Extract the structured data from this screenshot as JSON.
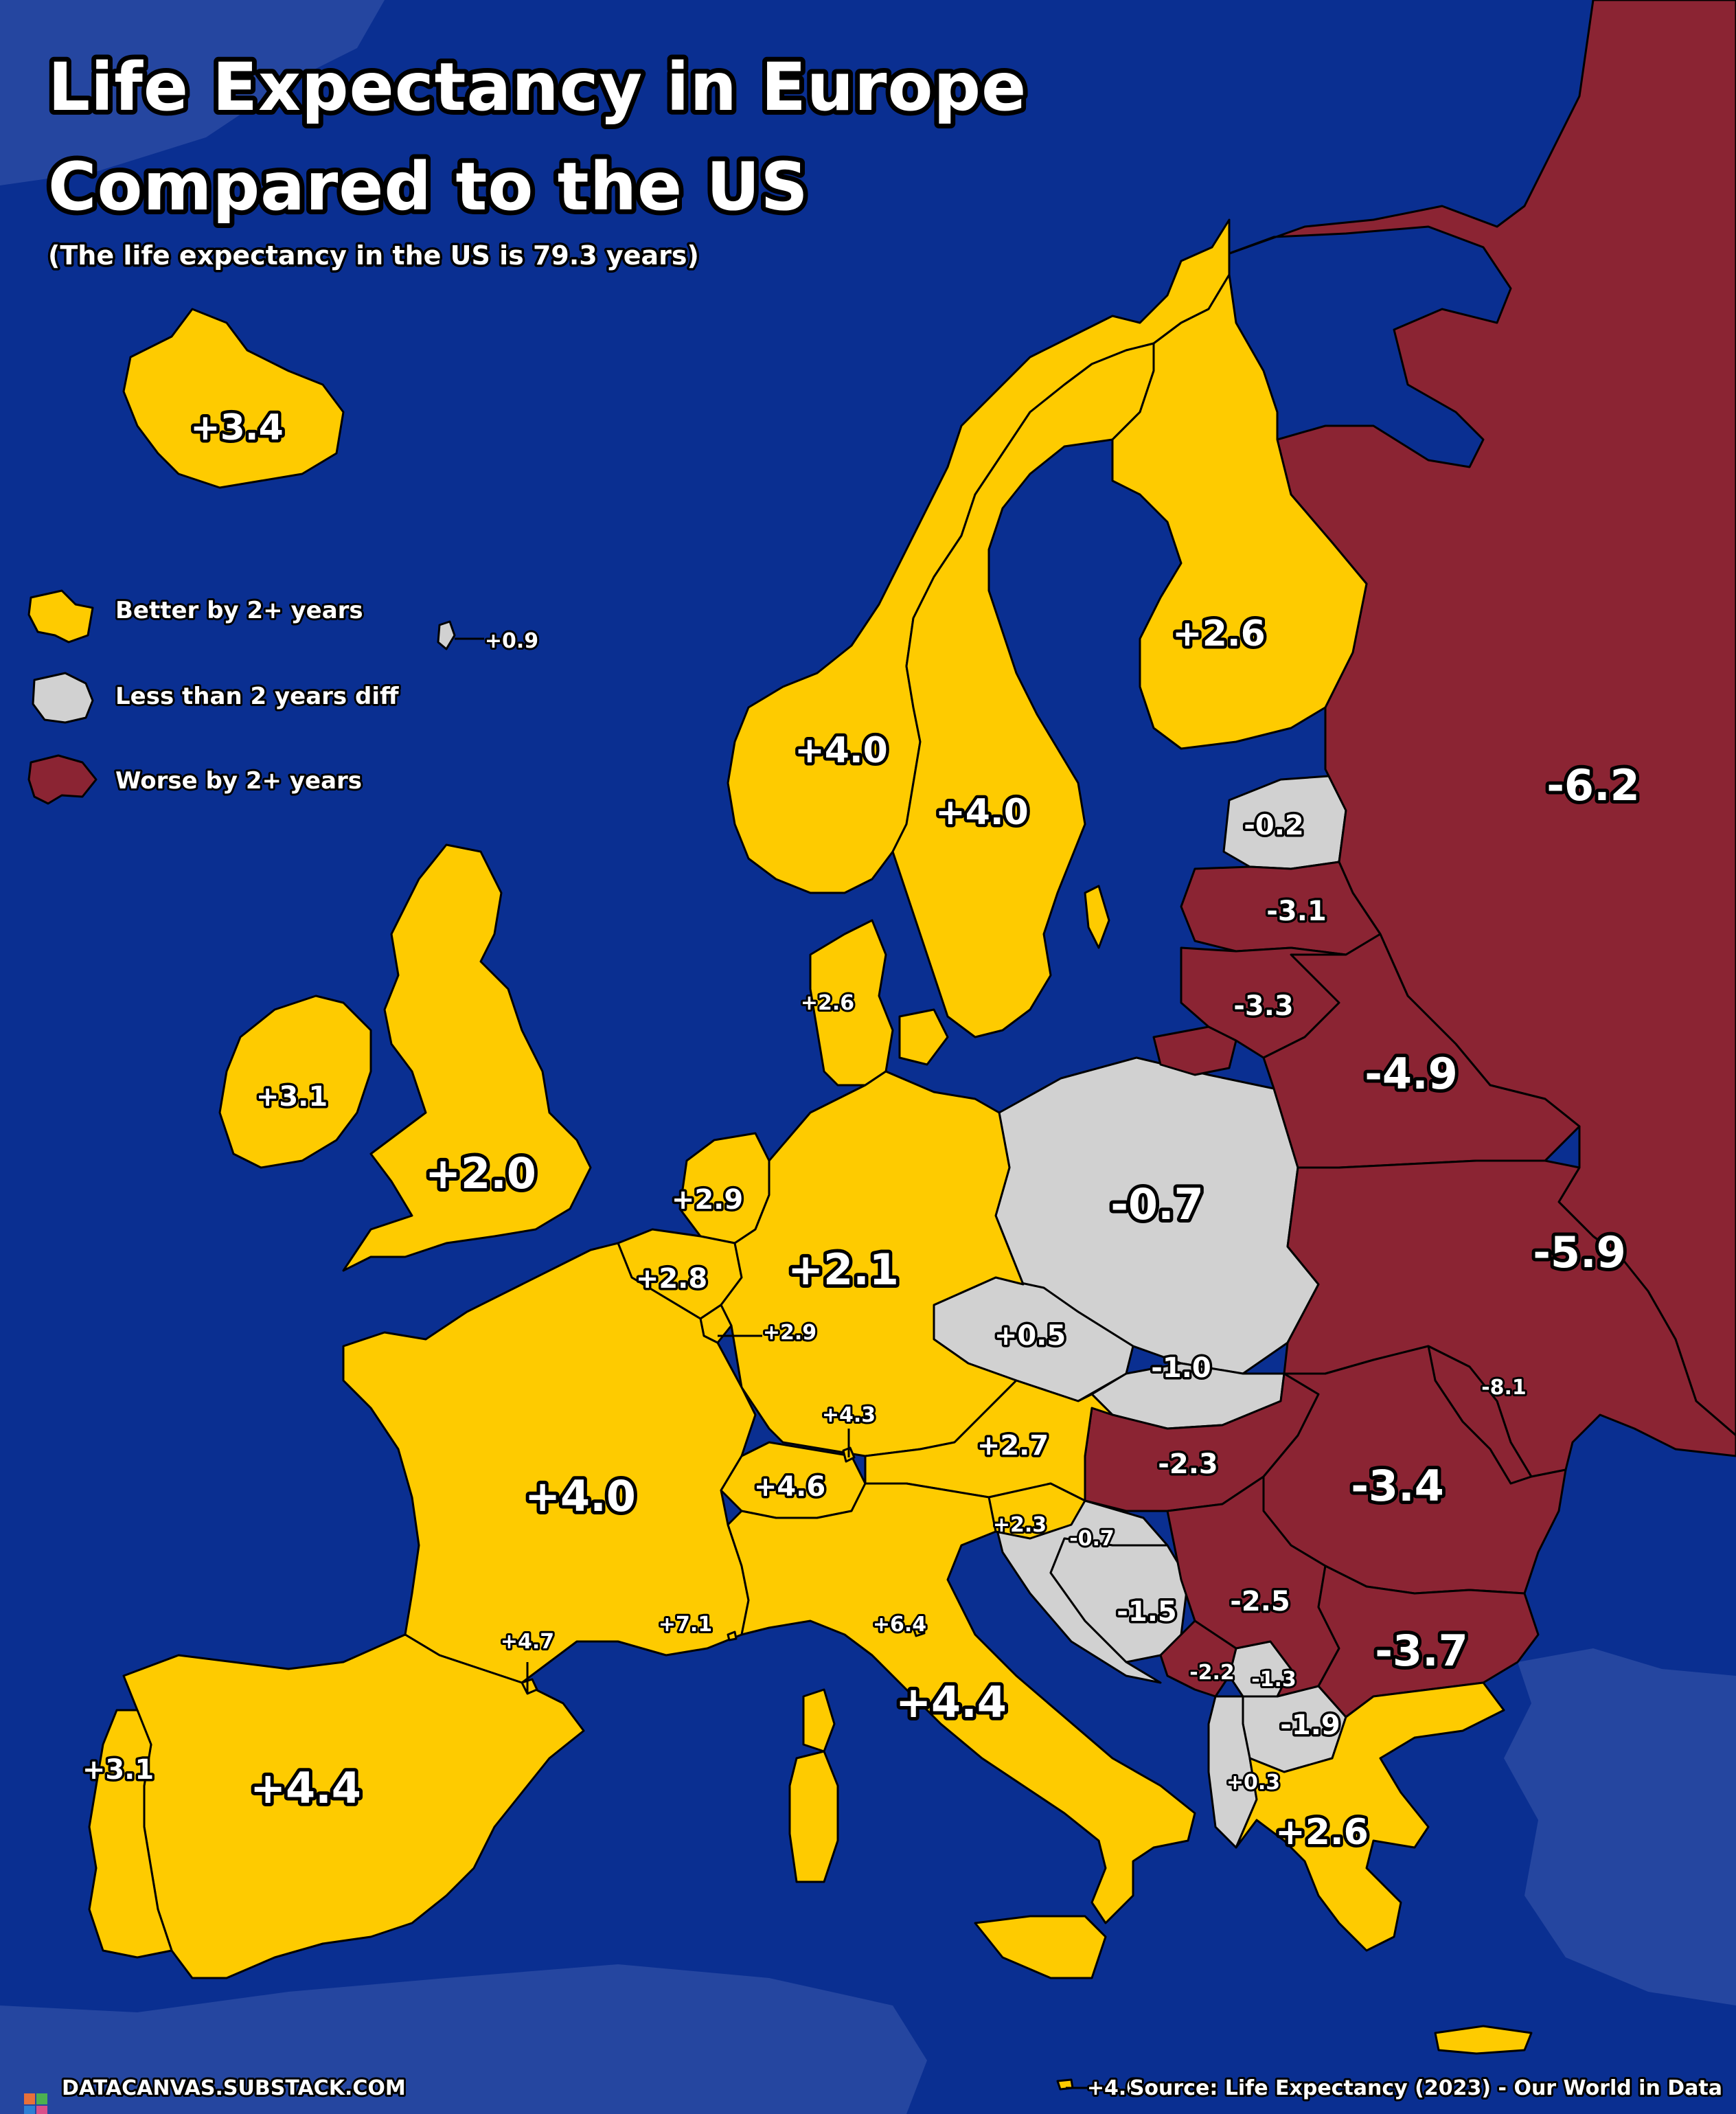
{
  "title_line1": "Life Expectancy in Europe",
  "title_line2": "Compared to the US",
  "subtitle": "(The life expectancy in the US is 79.3 years)",
  "legend": {
    "better": "Better by 2+ years",
    "similar": "Less than 2 years diff",
    "worse": "Worse by 2+ years"
  },
  "colors": {
    "better": "#fecb00",
    "similar": "#d1d1d1",
    "worse": "#8b2433",
    "sea": "#0a2f91",
    "outside_land": "#2546a0"
  },
  "labels": {
    "iceland": "+3.4",
    "faroe": "+0.9",
    "norway": "+4.0",
    "sweden": "+4.0",
    "finland": "+2.6",
    "russia": "-6.2",
    "estonia": "-0.2",
    "latvia": "-3.1",
    "lithuania": "-3.3",
    "belarus": "-4.9",
    "ukraine": "-5.9",
    "moldova": "-8.1",
    "poland": "-0.7",
    "denmark": "+2.6",
    "ireland": "+3.1",
    "uk": "+2.0",
    "netherlands": "+2.9",
    "belgium": "+2.8",
    "luxembourg": "+2.9",
    "germany": "+2.1",
    "czechia": "+0.5",
    "slovakia": "-1.0",
    "liechtenstein": "+4.3",
    "austria": "+2.7",
    "switzerland": "+4.6",
    "hungary": "-2.3",
    "romania": "-3.4",
    "slovenia": "+2.3",
    "croatia": "-0.7",
    "bosnia": "-1.5",
    "serbia": "-2.5",
    "bulgaria": "-3.7",
    "montenegro": "-2.2",
    "kosovo": "-1.3",
    "north_macedonia": "-1.9",
    "albania": "+0.3",
    "greece": "+2.6",
    "france": "+4.0",
    "andorra": "+4.7",
    "monaco": "+7.1",
    "san_marino": "+6.4",
    "italy": "+4.4",
    "spain": "+4.4",
    "portugal": "+3.1",
    "malta": "+4.0"
  },
  "footer": {
    "site": "DATACANVAS.SUBSTACK.COM",
    "source": "Source: Life Expectancy (2023) - Our World in Data"
  }
}
